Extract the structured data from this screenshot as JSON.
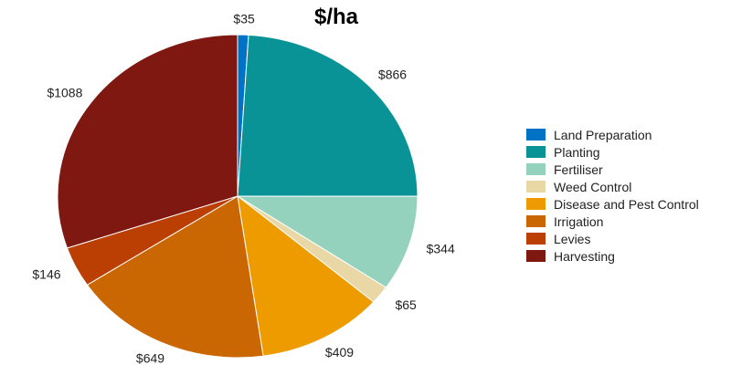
{
  "chart_data": {
    "type": "pie",
    "title": "$/ha",
    "categories": [
      "Land Preparation",
      "Planting",
      "Fertiliser",
      "Weed Control",
      "Disease and Pest Control",
      "Irrigation",
      "Levies",
      "Harvesting"
    ],
    "values": [
      35,
      866,
      344,
      65,
      409,
      649,
      146,
      1088
    ],
    "data_labels": [
      "$35",
      "$866",
      "$344",
      "$65",
      "$409",
      "$649",
      "$146",
      "$1088"
    ],
    "colors": [
      "#0072c6",
      "#0a9396",
      "#94d2bd",
      "#e9d8a6",
      "#ee9b00",
      "#ca6702",
      "#bb3e03",
      "#7f1810"
    ],
    "legend_position": "right"
  }
}
